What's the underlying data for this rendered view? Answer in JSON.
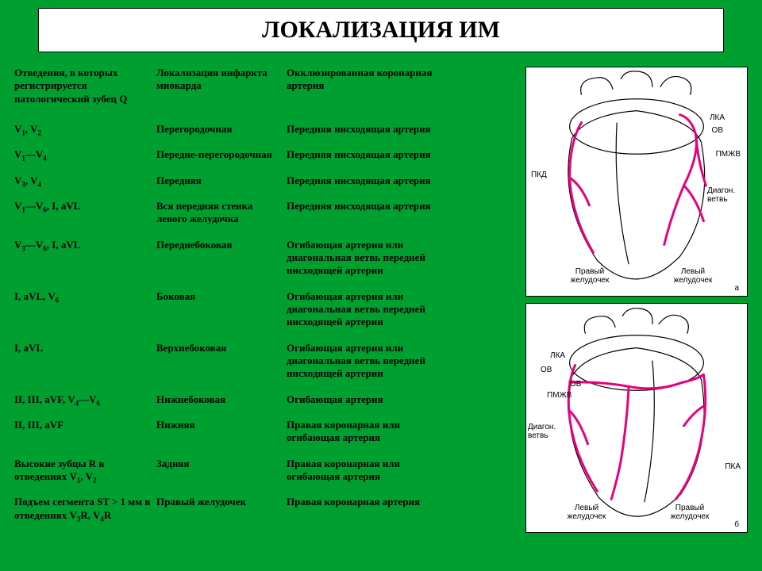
{
  "title": "ЛОКАЛИЗАЦИЯ ИМ",
  "headers": {
    "col1": "Отведения, в которых регистрируется патологический зубец Q",
    "col2": "Локализация инфаркта миокарда",
    "col3": "Окклюзированная коронарная артерия"
  },
  "rows": [
    {
      "c1": "V<sub>1</sub>, V<sub>2</sub>",
      "c2": "Перегородочная",
      "c3": "Передняя нисходящая артерия"
    },
    {
      "c1": "V<sub>1</sub>—V<sub>4</sub>",
      "c2": "Передне-перегородочная",
      "c3": "Передняя нисходящая артерия"
    },
    {
      "c1": "V<sub>3</sub>, V<sub>4</sub>",
      "c2": "Передняя",
      "c3": "Передняя нисходящая артерия"
    },
    {
      "c1": "V<sub>1</sub>—V<sub>6</sub>, I, aVL",
      "c2": "Вся передняя стенка левого желудочка",
      "c3": "Передняя нисходящая артерия"
    },
    {
      "c1": "V<sub>3</sub>—V<sub>6</sub>, I, aVL",
      "c2": "Переднебоковая",
      "c3": "Огибающая артерия или диагональная ветвь передней нисходящей артерии"
    },
    {
      "c1": "I, aVL, V<sub>6</sub>",
      "c2": "Боковая",
      "c3": "Огибающая артерия или диагональная ветвь передней нисходящей артерии"
    },
    {
      "c1": "I, aVL",
      "c2": "Верхнебоковая",
      "c3": "Огибающая артерия или диагональная ветвь передней нисходящей артерии"
    },
    {
      "c1": "II, III, aVF, V<sub>4</sub>—V<sub>6</sub>",
      "c2": "Нижнебоковая",
      "c3": "Огибающая артерия"
    },
    {
      "c1": "II, III, aVF",
      "c2": "Нижняя",
      "c3": "Правая коронарная или огибающая артерия"
    },
    {
      "c1": "Высокие зубцы R в отведениях V<sub>1</sub>, V<sub>2</sub>",
      "c2": "Задняя",
      "c3": "Правая коронарная или огибающая артерия"
    },
    {
      "c1": "Подъем сегмента ST > 1 мм в отведениях V<sub>3</sub>R, V<sub>4</sub>R",
      "c2": "Правый желудочек",
      "c3": "Правая коронарная артерия"
    }
  ],
  "fig1": {
    "labels": {
      "lka": "ЛКА",
      "ov": "ОВ",
      "pmzhv": "ПМЖВ",
      "diag": "Диагон. ветвь",
      "pka": "ПКД",
      "rv": "Правый желудочек",
      "lv": "Левый желудочек",
      "tag": "а"
    },
    "colors": {
      "heart_outline": "#000000",
      "artery": "#e6007e",
      "bg": "#ffffff"
    }
  },
  "fig2": {
    "labels": {
      "lka": "ЛКА",
      "ov": "ОВ",
      "ov2": "ОВ",
      "pmzhv": "ПМЖВ",
      "diag": "Диагон. ветвь",
      "pka": "ПКА",
      "lv": "Левый желудочек",
      "rv": "Правый желудочек",
      "tag": "б"
    },
    "colors": {
      "heart_outline": "#000000",
      "artery": "#e6007e",
      "bg": "#ffffff"
    }
  },
  "style": {
    "background": "#00a030",
    "title_bg": "#ffffff",
    "title_fontsize": 30,
    "body_fontsize": 13,
    "font_family": "Times New Roman"
  }
}
